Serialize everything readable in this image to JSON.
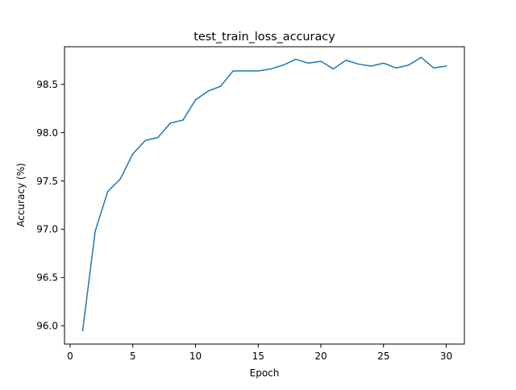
{
  "chart_data": {
    "type": "line",
    "title": "test_train_loss_accuracy",
    "xlabel": "Epoch",
    "ylabel": "Accuracy (%)",
    "xlim": [
      -0.45,
      31.45
    ],
    "ylim": [
      95.81,
      98.89
    ],
    "xticks": [
      0,
      5,
      10,
      15,
      20,
      25,
      30
    ],
    "yticks": [
      96.0,
      96.5,
      97.0,
      97.5,
      98.0,
      98.5
    ],
    "grid": false,
    "legend": "none",
    "series": [
      {
        "color": "#1f77b4",
        "x": [
          1,
          2,
          3,
          4,
          5,
          6,
          7,
          8,
          9,
          10,
          11,
          12,
          13,
          14,
          15,
          16,
          17,
          18,
          19,
          20,
          21,
          22,
          23,
          24,
          25,
          26,
          27,
          28,
          29,
          30
        ],
        "y": [
          95.95,
          96.98,
          97.39,
          97.52,
          97.78,
          97.92,
          97.95,
          98.1,
          98.13,
          98.34,
          98.43,
          98.48,
          98.64,
          98.64,
          98.64,
          98.66,
          98.7,
          98.76,
          98.72,
          98.74,
          98.66,
          98.75,
          98.71,
          98.69,
          98.72,
          98.67,
          98.7,
          98.78,
          98.67,
          98.69
        ]
      }
    ]
  }
}
